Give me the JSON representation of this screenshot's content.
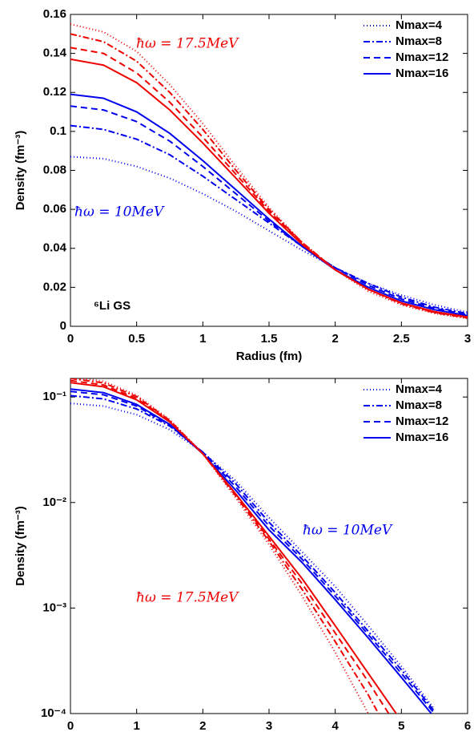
{
  "chart_data": [
    {
      "type": "line",
      "xlabel": "Radius (fm)",
      "ylabel": "Density (fm⁻³)",
      "xlim": [
        0,
        3
      ],
      "ylim": [
        0,
        0.16
      ],
      "log_y": false,
      "legend": "upper right",
      "xticks": [
        0,
        0.5,
        1,
        1.5,
        2,
        2.5,
        3
      ],
      "yticks": [
        0,
        0.02,
        0.04,
        0.06,
        0.08,
        0.1,
        0.12,
        0.14,
        0.16
      ],
      "x": [
        0,
        0.25,
        0.5,
        0.75,
        1,
        1.25,
        1.5,
        1.75,
        2,
        2.25,
        2.5,
        2.75,
        3
      ],
      "annotations": [
        {
          "text": "ħω = 17.5MeV",
          "color": "#ee0000"
        },
        {
          "text": "ħω = 10MeV",
          "color": "#0000ee"
        },
        {
          "text": "⁶Li GS",
          "color": "#000000"
        }
      ],
      "series": [
        {
          "name": "Nmax=4",
          "color": "#0000ee",
          "style": "dotted",
          "values": [
            0.087,
            0.086,
            0.082,
            0.076,
            0.068,
            0.059,
            0.049,
            0.039,
            0.03,
            0.022,
            0.016,
            0.011,
            0.0072
          ]
        },
        {
          "name": "Nmax=8",
          "color": "#0000ee",
          "style": "dashdot",
          "values": [
            0.103,
            0.101,
            0.096,
            0.088,
            0.077,
            0.065,
            0.053,
            0.041,
            0.03,
            0.022,
            0.015,
            0.0098,
            0.0065
          ]
        },
        {
          "name": "Nmax=12",
          "color": "#0000ee",
          "style": "dashed",
          "values": [
            0.113,
            0.111,
            0.105,
            0.095,
            0.082,
            0.068,
            0.054,
            0.041,
            0.03,
            0.021,
            0.014,
            0.0092,
            0.006
          ]
        },
        {
          "name": "Nmax=16",
          "color": "#0000ee",
          "style": "solid",
          "values": [
            0.119,
            0.117,
            0.11,
            0.099,
            0.085,
            0.07,
            0.055,
            0.041,
            0.029,
            0.02,
            0.013,
            0.0085,
            0.0055
          ]
        },
        {
          "name": "Nmax=4",
          "color": "#ee0000",
          "style": "dotted",
          "values": [
            0.155,
            0.151,
            0.141,
            0.124,
            0.104,
            0.082,
            0.061,
            0.043,
            0.029,
            0.018,
            0.011,
            0.0066,
            0.004
          ]
        },
        {
          "name": "Nmax=8",
          "color": "#ee0000",
          "style": "dashdot",
          "values": [
            0.15,
            0.146,
            0.136,
            0.12,
            0.101,
            0.08,
            0.06,
            0.043,
            0.029,
            0.019,
            0.0115,
            0.007,
            0.0043
          ]
        },
        {
          "name": "Nmax=12",
          "color": "#ee0000",
          "style": "dashed",
          "values": [
            0.143,
            0.14,
            0.13,
            0.115,
            0.097,
            0.078,
            0.059,
            0.043,
            0.029,
            0.019,
            0.012,
            0.0072,
            0.0045
          ]
        },
        {
          "name": "Nmax=16",
          "color": "#ee0000",
          "style": "solid",
          "values": [
            0.137,
            0.134,
            0.125,
            0.111,
            0.094,
            0.076,
            0.058,
            0.042,
            0.029,
            0.019,
            0.012,
            0.0075,
            0.0048
          ]
        }
      ]
    },
    {
      "type": "line",
      "xlabel": "Radius (fm)",
      "ylabel": "Density (fm⁻³)",
      "xlim": [
        0,
        6
      ],
      "ylim": [
        0.0001,
        0.15
      ],
      "log_y": true,
      "legend": "upper right",
      "xticks": [
        0,
        1,
        2,
        3,
        4,
        5,
        6
      ],
      "yticks": [
        {
          "value": 0.0001,
          "label": "10⁻⁴"
        },
        {
          "value": 0.001,
          "label": "10⁻³"
        },
        {
          "value": 0.01,
          "label": "10⁻²"
        },
        {
          "value": 0.1,
          "label": "10⁻¹"
        }
      ],
      "x": [
        0,
        0.5,
        1,
        1.5,
        2,
        2.5,
        3,
        3.5,
        4,
        4.5,
        5,
        5.5
      ],
      "annotations": [
        {
          "text": "ħω = 10MeV",
          "color": "#0000ee"
        },
        {
          "text": "ħω = 17.5MeV",
          "color": "#ee0000"
        }
      ],
      "series": [
        {
          "name": "Nmax=4",
          "color": "#0000ee",
          "style": "dotted",
          "values": [
            0.087,
            0.082,
            0.068,
            0.049,
            0.03,
            0.016,
            0.0072,
            0.0034,
            0.0016,
            0.00068,
            0.00028,
            0.00011
          ]
        },
        {
          "name": "Nmax=8",
          "color": "#0000ee",
          "style": "dashdot",
          "values": [
            0.103,
            0.096,
            0.077,
            0.053,
            0.03,
            0.015,
            0.0065,
            0.0031,
            0.0014,
            0.0006,
            0.00026,
            0.000105
          ]
        },
        {
          "name": "Nmax=12",
          "color": "#0000ee",
          "style": "dashed",
          "values": [
            0.113,
            0.105,
            0.082,
            0.054,
            0.03,
            0.014,
            0.006,
            0.0029,
            0.0013,
            0.00056,
            0.00024,
            0.0001
          ]
        },
        {
          "name": "Nmax=16",
          "color": "#0000ee",
          "style": "solid",
          "values": [
            0.119,
            0.11,
            0.085,
            0.055,
            0.029,
            0.013,
            0.0055,
            0.0027,
            0.0012,
            0.00052,
            0.00022,
            9.2e-05
          ]
        },
        {
          "name": "Nmax=4",
          "color": "#ee0000",
          "style": "dotted",
          "values": [
            0.155,
            0.141,
            0.104,
            0.061,
            0.029,
            0.011,
            0.004,
            0.0013,
            0.00038,
            0.0001,
            null,
            null
          ]
        },
        {
          "name": "Nmax=8",
          "color": "#ee0000",
          "style": "dashdot",
          "values": [
            0.15,
            0.136,
            0.101,
            0.06,
            0.029,
            0.0115,
            0.0043,
            0.0015,
            0.00048,
            0.00015,
            4e-05,
            null
          ]
        },
        {
          "name": "Nmax=12",
          "color": "#ee0000",
          "style": "dashed",
          "values": [
            0.143,
            0.13,
            0.097,
            0.059,
            0.029,
            0.012,
            0.0045,
            0.0017,
            0.00058,
            0.0002,
            6.5e-05,
            null
          ]
        },
        {
          "name": "Nmax=16",
          "color": "#ee0000",
          "style": "solid",
          "values": [
            0.137,
            0.125,
            0.094,
            0.058,
            0.029,
            0.012,
            0.0048,
            0.0019,
            0.00068,
            0.00024,
            8.5e-05,
            null
          ]
        }
      ]
    }
  ]
}
